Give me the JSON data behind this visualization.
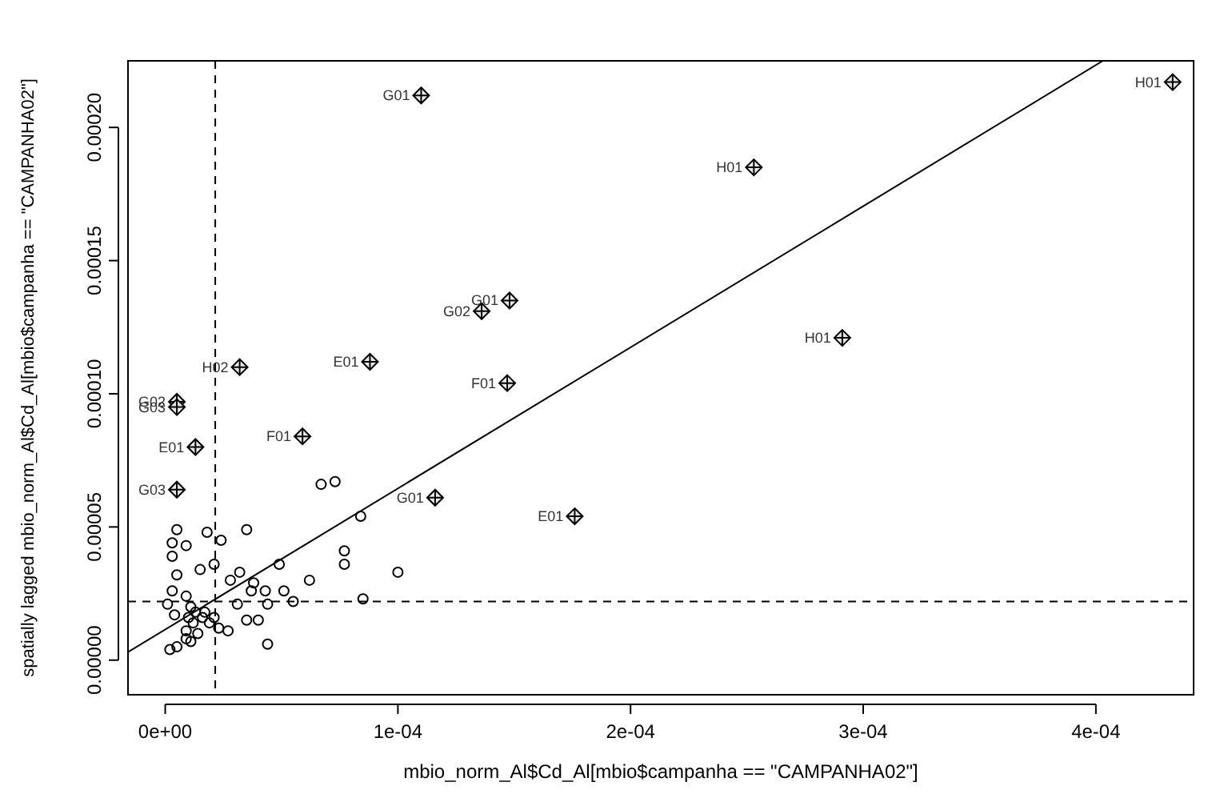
{
  "chart_data": {
    "type": "scatter",
    "xlabel": "mbio_norm_Al$Cd_Al[mbio$campanha == \"CAMPANHA02\"]",
    "ylabel": "spatially lagged mbio_norm_Al$Cd_Al[mbio$campanha == \"CAMPANHA02\"]",
    "xlim": [
      -1.6e-05,
      0.000442
    ],
    "ylim": [
      -1.3e-05,
      0.000225
    ],
    "xticks": [
      {
        "value": 0,
        "label": "0e+00"
      },
      {
        "value": 0.0001,
        "label": "1e-04"
      },
      {
        "value": 0.0002,
        "label": "2e-04"
      },
      {
        "value": 0.0003,
        "label": "3e-04"
      },
      {
        "value": 0.0004,
        "label": "4e-04"
      }
    ],
    "yticks": [
      {
        "value": 0,
        "label": "0.00000"
      },
      {
        "value": 5e-05,
        "label": "0.00005"
      },
      {
        "value": 0.0001,
        "label": "0.00010"
      },
      {
        "value": 0.00015,
        "label": "0.00015"
      },
      {
        "value": 0.0002,
        "label": "0.00020"
      }
    ],
    "grid": false,
    "series": [
      {
        "marker": "circle",
        "color": "#000000",
        "x": [
          5e-06,
          1.8e-05,
          3.5e-05,
          2.4e-05,
          3e-06,
          9e-06,
          3e-06,
          2.1e-05,
          1.5e-05,
          5e-06,
          3.2e-05,
          2.8e-05,
          3.8e-05,
          4.9e-05,
          6.7e-05,
          7.3e-05,
          8.4e-05,
          7.7e-05,
          7.7e-05,
          6.2e-05,
          0.0001,
          8.5e-05,
          5.1e-05,
          5.5e-05,
          4.3e-05,
          3.7e-05,
          3.1e-05,
          4.4e-05,
          3.5e-05,
          4e-05,
          2.7e-05,
          4.4e-05,
          3e-06,
          9e-06,
          1.1e-05,
          1.7e-05,
          2.1e-05,
          2.3e-05,
          9e-06,
          2e-06,
          5e-06,
          1.2e-05,
          1e-06,
          4e-06,
          1.4e-05,
          1.9e-05,
          1e-05,
          9e-06,
          1.3e-05,
          1.6e-05,
          1.1e-05
        ],
        "values": [
          4.9e-05,
          4.8e-05,
          4.9e-05,
          4.5e-05,
          4.4e-05,
          4.3e-05,
          3.9e-05,
          3.6e-05,
          3.4e-05,
          3.2e-05,
          3.3e-05,
          3e-05,
          2.9e-05,
          3.6e-05,
          6.6e-05,
          6.7e-05,
          5.4e-05,
          4.1e-05,
          3.6e-05,
          3e-05,
          3.3e-05,
          2.3e-05,
          2.6e-05,
          2.2e-05,
          2.6e-05,
          2.6e-05,
          2.1e-05,
          2.1e-05,
          1.5e-05,
          1.5e-05,
          1.1e-05,
          6e-06,
          2.6e-05,
          2.4e-05,
          2e-05,
          1.8e-05,
          1.6e-05,
          1.2e-05,
          8e-06,
          4e-06,
          5e-06,
          1.4e-05,
          2.1e-05,
          1.7e-05,
          1e-05,
          1.4e-05,
          1.6e-05,
          1.1e-05,
          1.8e-05,
          1.6e-05,
          7e-06
        ]
      },
      {
        "marker": "cross",
        "color": "#000000",
        "x": [
          0.00011,
          0.000433,
          0.000253,
          0.000148,
          0.000136,
          0.000291,
          3.2e-05,
          8.8e-05,
          0.000147,
          5e-06,
          5e-06,
          5.9e-05,
          1.3e-05,
          5e-06,
          0.000116,
          0.000176
        ],
        "values": [
          0.000212,
          0.000217,
          0.000185,
          0.000135,
          0.000131,
          0.000121,
          0.00011,
          0.000112,
          0.000104,
          9.7e-05,
          9.5e-05,
          8.4e-05,
          8e-05,
          6.4e-05,
          6.1e-05,
          5.4e-05
        ]
      },
      {
        "type": "line",
        "color": "#000000",
        "line_style": "solid",
        "x": [
          -1.6e-05,
          0.000403
        ],
        "values": [
          3e-06,
          0.000225
        ]
      }
    ],
    "ref_lines": [
      {
        "axis": "x",
        "value": 2.15e-05,
        "line_style": "dashed"
      },
      {
        "axis": "y",
        "value": 2.2e-05,
        "line_style": "dashed"
      }
    ],
    "annotations": [
      {
        "text": "G01",
        "x": 0.00011,
        "y": 0.000212
      },
      {
        "text": "H01",
        "x": 0.000433,
        "y": 0.000217
      },
      {
        "text": "H01",
        "x": 0.000253,
        "y": 0.000185
      },
      {
        "text": "G01",
        "x": 0.000148,
        "y": 0.000135
      },
      {
        "text": "G02",
        "x": 0.000136,
        "y": 0.000131
      },
      {
        "text": "H01",
        "x": 0.000291,
        "y": 0.000121
      },
      {
        "text": "H02",
        "x": 3.2e-05,
        "y": 0.00011
      },
      {
        "text": "E01",
        "x": 8.8e-05,
        "y": 0.000112
      },
      {
        "text": "F01",
        "x": 0.000147,
        "y": 0.000104
      },
      {
        "text": "G02",
        "x": 5e-06,
        "y": 9.7e-05
      },
      {
        "text": "G03",
        "x": 5e-06,
        "y": 9.5e-05
      },
      {
        "text": "F01",
        "x": 5.9e-05,
        "y": 8.4e-05
      },
      {
        "text": "E01",
        "x": 1.3e-05,
        "y": 8e-05
      },
      {
        "text": "G03",
        "x": 5e-06,
        "y": 6.4e-05
      },
      {
        "text": "G01",
        "x": 0.000116,
        "y": 6.1e-05
      },
      {
        "text": "E01",
        "x": 0.000176,
        "y": 5.4e-05
      }
    ]
  }
}
